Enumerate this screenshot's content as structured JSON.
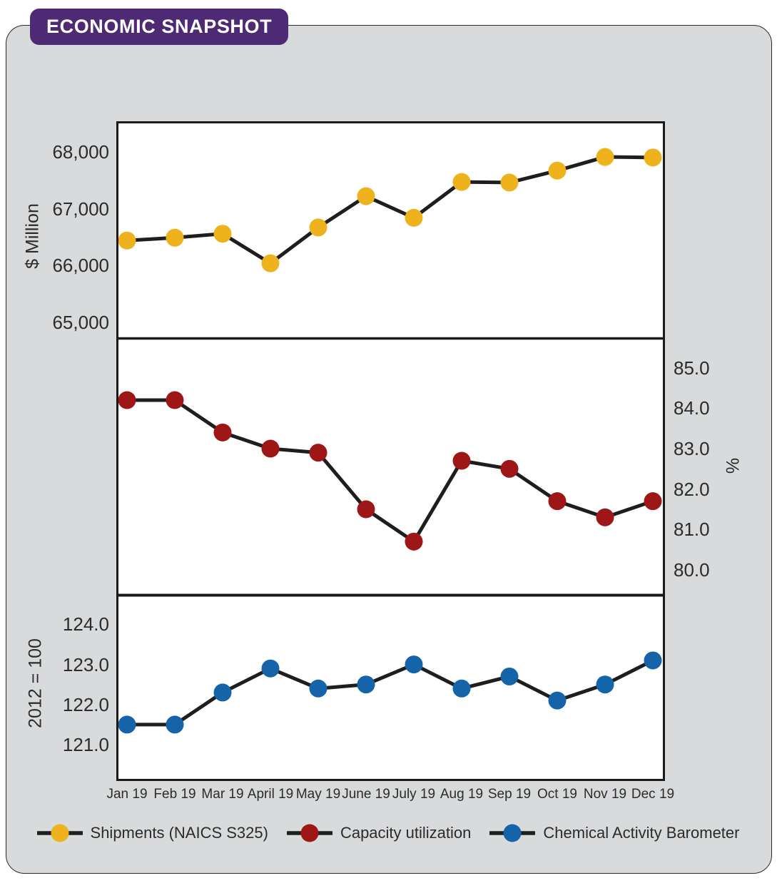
{
  "header": {
    "title": "ECONOMIC SNAPSHOT"
  },
  "colors": {
    "badge": "#4E2A74",
    "card_bg": "#D8DADB",
    "panel_border": "#1A1A1A",
    "line": "#1E1E1E",
    "text": "#2b2b2b",
    "shipments": "#EEB21C",
    "capacity": "#9F1616",
    "cab": "#1563A9"
  },
  "chart_data": [
    {
      "type": "line",
      "key": "shipments",
      "name": "Shipments (NAICS S325)",
      "ylabel": "$ Million",
      "ticks_side": "left",
      "categories": [
        "Jan 19",
        "Feb 19",
        "Mar 19",
        "April 19",
        "May 19",
        "June 19",
        "July 19",
        "Aug 19",
        "Sep 19",
        "Oct 19",
        "Nov 19",
        "Dec 19"
      ],
      "values": [
        66440,
        66490,
        66560,
        66040,
        66670,
        67220,
        66840,
        67470,
        67460,
        67670,
        67910,
        67900
      ],
      "ylim": [
        64700,
        68500
      ],
      "yticks": [
        {
          "value": 68000,
          "label": "68,000"
        },
        {
          "value": 67000,
          "label": "67,000"
        },
        {
          "value": 66000,
          "label": "66,000"
        },
        {
          "value": 65000,
          "label": "65,000"
        }
      ]
    },
    {
      "type": "line",
      "key": "capacity",
      "name": "Capacity utilization",
      "ylabel": "%",
      "ticks_side": "right",
      "categories": [
        "Jan 19",
        "Feb 19",
        "Mar 19",
        "April 19",
        "May 19",
        "June 19",
        "July 19",
        "Aug 19",
        "Sep 19",
        "Oct 19",
        "Nov 19",
        "Dec 19"
      ],
      "values": [
        84.2,
        84.2,
        83.4,
        83.0,
        82.9,
        81.5,
        80.7,
        82.7,
        82.5,
        81.7,
        81.3,
        81.7
      ],
      "ylim": [
        79.4,
        85.7
      ],
      "yticks": [
        {
          "value": 85.0,
          "label": "85.0"
        },
        {
          "value": 84.0,
          "label": "84.0"
        },
        {
          "value": 83.0,
          "label": "83.0"
        },
        {
          "value": 82.0,
          "label": "82.0"
        },
        {
          "value": 81.0,
          "label": "81.0"
        },
        {
          "value": 80.0,
          "label": "80.0"
        }
      ]
    },
    {
      "type": "line",
      "key": "cab",
      "name": "Chemical Activity Barometer",
      "ylabel": "2012 = 100",
      "ticks_side": "left",
      "categories": [
        "Jan 19",
        "Feb 19",
        "Mar 19",
        "April 19",
        "May 19",
        "June 19",
        "July 19",
        "Aug 19",
        "Sep 19",
        "Oct 19",
        "Nov 19",
        "Dec 19"
      ],
      "values": [
        121.5,
        121.5,
        122.3,
        122.9,
        122.4,
        122.5,
        123.0,
        122.4,
        122.7,
        122.1,
        122.5,
        123.1
      ],
      "ylim": [
        120.2,
        124.7
      ],
      "yticks": [
        {
          "value": 124.0,
          "label": "124.0"
        },
        {
          "value": 123.0,
          "label": "123.0"
        },
        {
          "value": 122.0,
          "label": "122.0"
        },
        {
          "value": 121.0,
          "label": "121.0"
        }
      ]
    }
  ],
  "legend": {
    "position": "bottom-center",
    "items": [
      {
        "label": "Shipments (NAICS S325)",
        "color_key": "shipments"
      },
      {
        "label": "Capacity utilization",
        "color_key": "capacity"
      },
      {
        "label": "Chemical Activity Barometer",
        "color_key": "cab"
      }
    ]
  }
}
